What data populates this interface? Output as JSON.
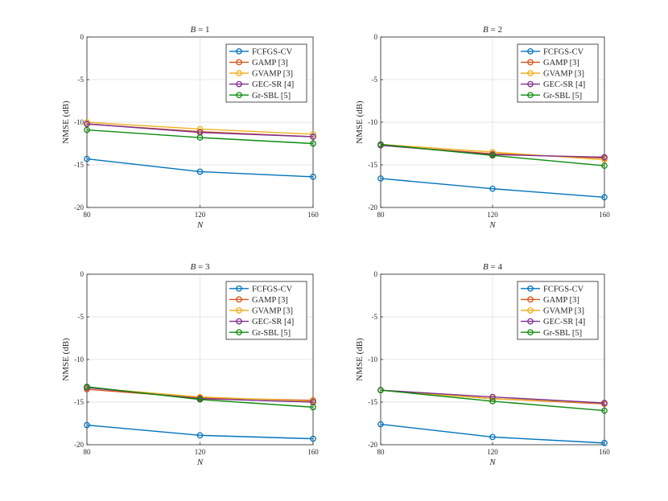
{
  "chart_data": [
    {
      "type": "line",
      "title": "B = 1",
      "title_var": "B",
      "title_eq": " = 1",
      "xlabel": "N",
      "ylabel": "NMSE (dB)",
      "x": [
        80,
        120,
        160
      ],
      "xticks": [
        "80",
        "120",
        "160"
      ],
      "ylim": [
        -20,
        0
      ],
      "yticks": [
        "0",
        "-5",
        "-10",
        "-15",
        "-20"
      ],
      "grid": true,
      "legend_position": "top-right",
      "series": [
        {
          "name": "FCFGS-CV",
          "values": [
            -14.3,
            -15.8,
            -16.4
          ]
        },
        {
          "name": "GAMP [3]",
          "values": [
            -10.2,
            -11.1,
            -11.7
          ]
        },
        {
          "name": "GVAMP [3]",
          "values": [
            -10.0,
            -10.8,
            -11.4
          ]
        },
        {
          "name": "GEC-SR [4]",
          "values": [
            -10.2,
            -11.2,
            -11.7
          ]
        },
        {
          "name": "Gr-SBL [5]",
          "values": [
            -10.9,
            -11.8,
            -12.5
          ]
        }
      ]
    },
    {
      "type": "line",
      "title": "B = 2",
      "title_var": "B",
      "title_eq": " = 2",
      "xlabel": "N",
      "ylabel": "NMSE (dB)",
      "x": [
        80,
        120,
        160
      ],
      "xticks": [
        "80",
        "120",
        "160"
      ],
      "ylim": [
        -20,
        0
      ],
      "yticks": [
        "0",
        "-5",
        "-10",
        "-15",
        "-20"
      ],
      "grid": true,
      "legend_position": "top-right",
      "series": [
        {
          "name": "FCFGS-CV",
          "values": [
            -16.6,
            -17.8,
            -18.8
          ]
        },
        {
          "name": "GAMP [3]",
          "values": [
            -12.7,
            -13.7,
            -14.2
          ]
        },
        {
          "name": "GVAMP [3]",
          "values": [
            -12.6,
            -13.5,
            -14.4
          ]
        },
        {
          "name": "GEC-SR [4]",
          "values": [
            -12.7,
            -13.8,
            -14.1
          ]
        },
        {
          "name": "Gr-SBL [5]",
          "values": [
            -12.6,
            -13.9,
            -15.1
          ]
        }
      ]
    },
    {
      "type": "line",
      "title": "B = 3",
      "title_var": "B",
      "title_eq": " = 3",
      "xlabel": "N",
      "ylabel": "NMSE (dB)",
      "x": [
        80,
        120,
        160
      ],
      "xticks": [
        "80",
        "120",
        "160"
      ],
      "ylim": [
        -20,
        0
      ],
      "yticks": [
        "0",
        "-5",
        "-10",
        "-15",
        "-20"
      ],
      "grid": true,
      "legend_position": "top-right",
      "series": [
        {
          "name": "FCFGS-CV",
          "values": [
            -17.7,
            -18.9,
            -19.3
          ]
        },
        {
          "name": "GAMP [3]",
          "values": [
            -13.5,
            -14.5,
            -14.8
          ]
        },
        {
          "name": "GVAMP [3]",
          "values": [
            -13.3,
            -14.4,
            -14.9
          ]
        },
        {
          "name": "GEC-SR [4]",
          "values": [
            -13.3,
            -14.6,
            -15.0
          ]
        },
        {
          "name": "Gr-SBL [5]",
          "values": [
            -13.2,
            -14.7,
            -15.6
          ]
        }
      ]
    },
    {
      "type": "line",
      "title": "B = 4",
      "title_var": "B",
      "title_eq": " = 4",
      "xlabel": "N",
      "ylabel": "NMSE (dB)",
      "x": [
        80,
        120,
        160
      ],
      "xticks": [
        "80",
        "120",
        "160"
      ],
      "ylim": [
        -20,
        0
      ],
      "yticks": [
        "0",
        "-5",
        "-10",
        "-15",
        "-20"
      ],
      "grid": true,
      "legend_position": "top-right",
      "series": [
        {
          "name": "FCFGS-CV",
          "values": [
            -17.6,
            -19.1,
            -19.8
          ]
        },
        {
          "name": "GAMP [3]",
          "values": [
            -13.6,
            -14.6,
            -15.2
          ]
        },
        {
          "name": "GVAMP [3]",
          "values": [
            -13.6,
            -14.6,
            -15.1
          ]
        },
        {
          "name": "GEC-SR [4]",
          "values": [
            -13.6,
            -14.4,
            -15.1
          ]
        },
        {
          "name": "Gr-SBL [5]",
          "values": [
            -13.6,
            -14.9,
            -16.0
          ]
        }
      ]
    }
  ],
  "colors": {
    "series": [
      "#0072BD",
      "#D95319",
      "#EDB120",
      "#7E2F8E",
      "#0B8A0B"
    ],
    "grid": "#e6e6e6",
    "axis": "#262626",
    "background": "#ffffff"
  }
}
